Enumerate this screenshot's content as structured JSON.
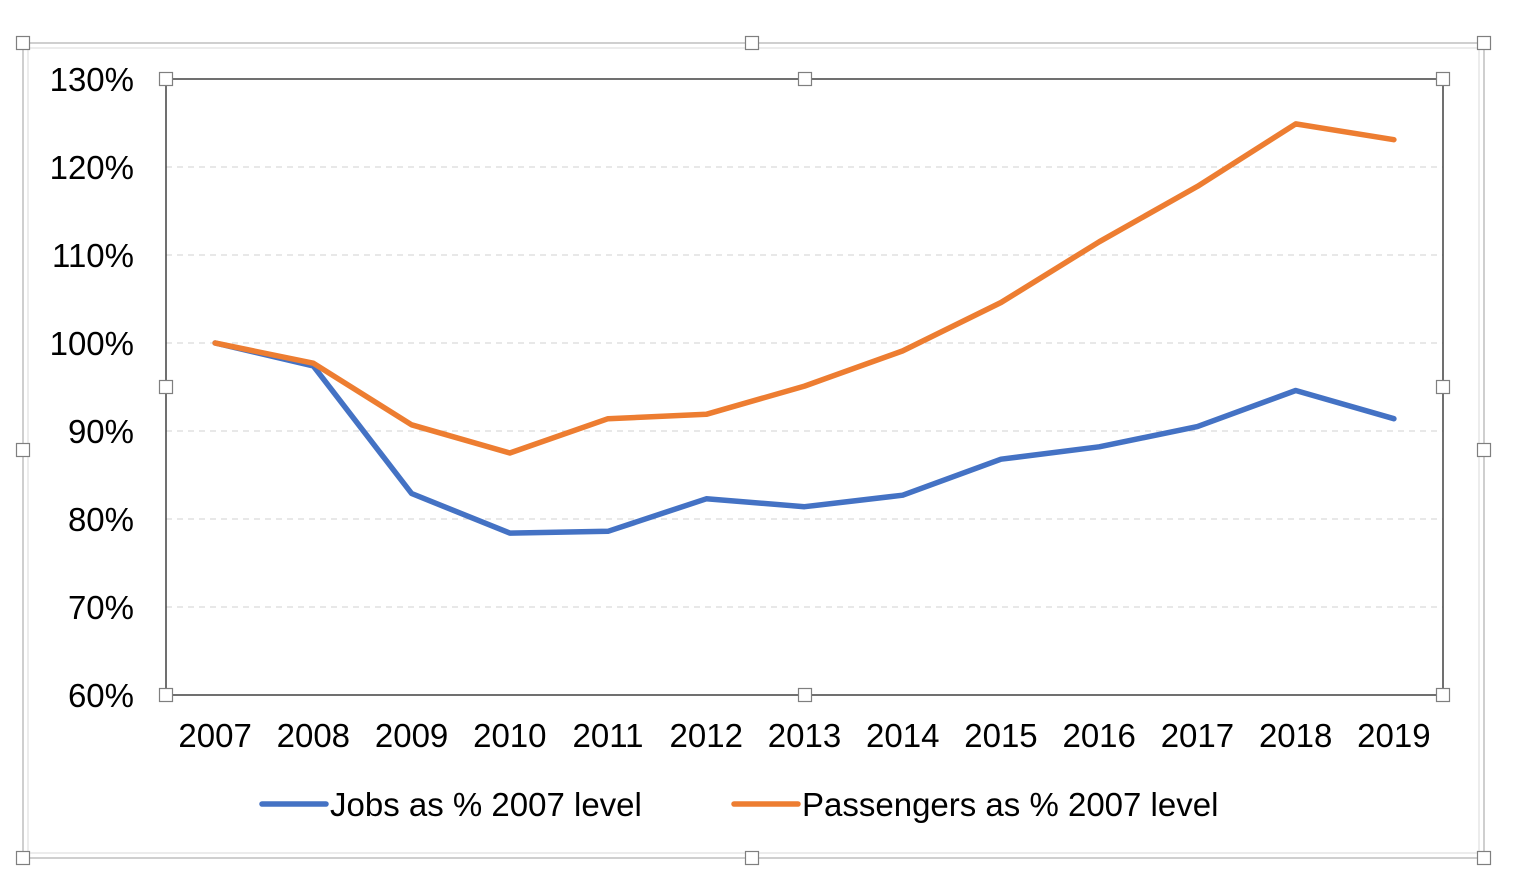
{
  "chart_data": {
    "type": "line",
    "title": "",
    "xlabel": "",
    "ylabel": "",
    "categories": [
      "2007",
      "2008",
      "2009",
      "2010",
      "2011",
      "2012",
      "2013",
      "2014",
      "2015",
      "2016",
      "2017",
      "2018",
      "2019"
    ],
    "ylim": [
      0.6,
      1.3
    ],
    "y_ticks": [
      0.6,
      0.7,
      0.8,
      0.9,
      1.0,
      1.1,
      1.2,
      1.3
    ],
    "y_tick_labels": [
      "60%",
      "70%",
      "80%",
      "90%",
      "100%",
      "110%",
      "120%",
      "130%"
    ],
    "grid": "horizontal-dashed",
    "legend_position": "bottom",
    "series": [
      {
        "name": "Jobs as % 2007 level",
        "color": "#4472C4",
        "values": [
          1.0,
          0.974,
          0.829,
          0.784,
          0.786,
          0.823,
          0.814,
          0.827,
          0.868,
          0.882,
          0.905,
          0.946,
          0.914
        ]
      },
      {
        "name": "Passengers as % 2007 level",
        "color": "#ED7D31",
        "values": [
          1.0,
          0.977,
          0.907,
          0.875,
          0.914,
          0.919,
          0.951,
          0.991,
          1.046,
          1.115,
          1.178,
          1.249,
          1.231
        ]
      }
    ]
  }
}
